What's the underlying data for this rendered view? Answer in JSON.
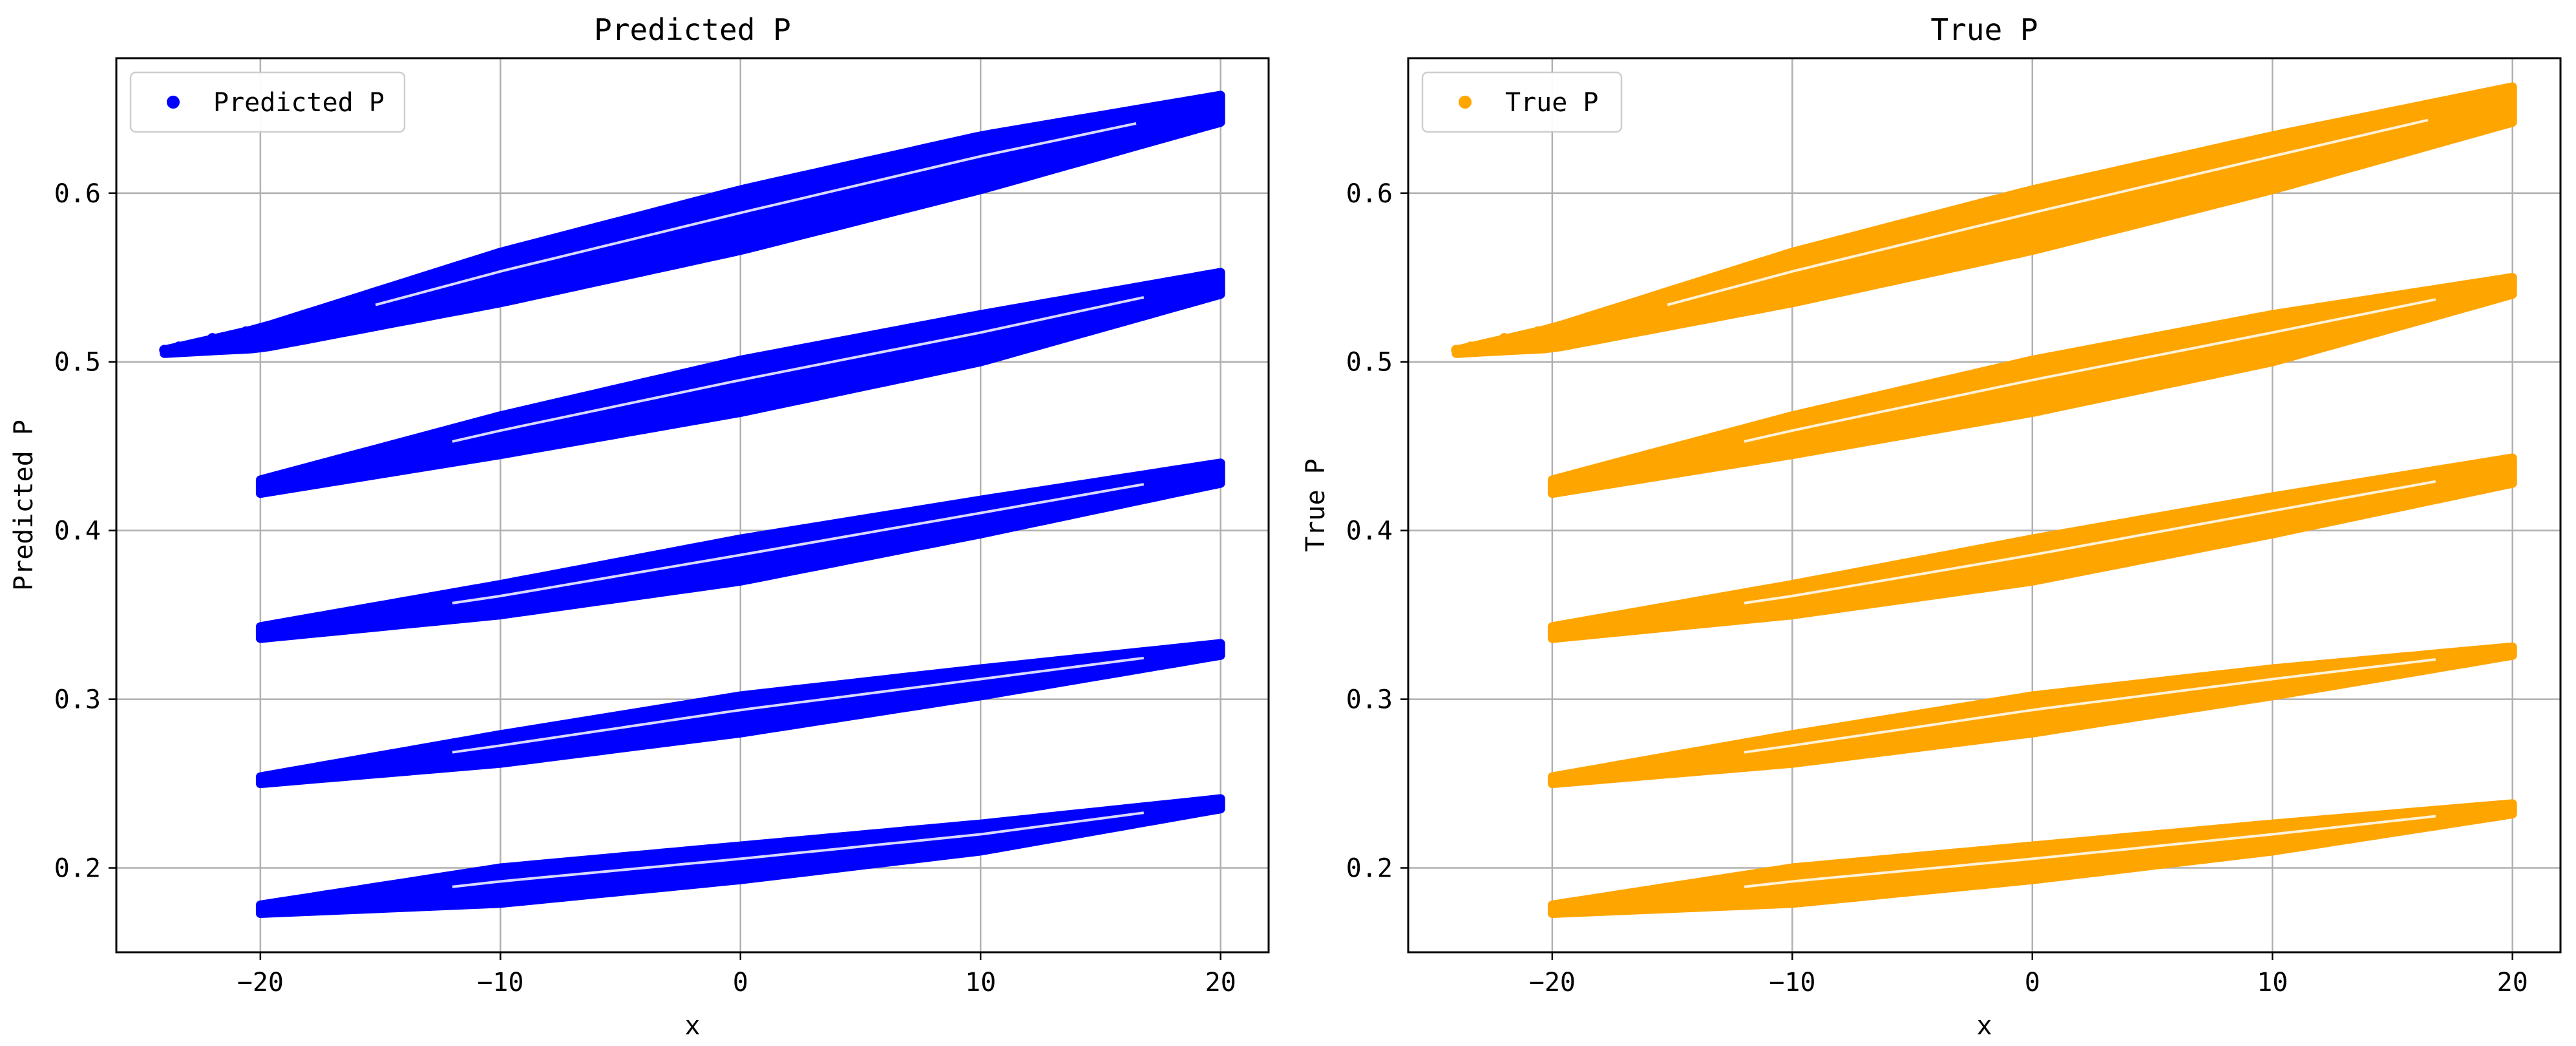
{
  "chart_data": [
    {
      "type": "scatter",
      "title": "Predicted P",
      "xlabel": "x",
      "ylabel": "Predicted P",
      "xlim": [
        -26,
        22
      ],
      "ylim": [
        0.15,
        0.68
      ],
      "xticks": [
        -20,
        -10,
        0,
        10,
        20
      ],
      "yticks": [
        0.2,
        0.3,
        0.4,
        0.5,
        0.6
      ],
      "xtick_labels": [
        "−20",
        "−10",
        "0",
        "10",
        "20"
      ],
      "ytick_labels": [
        "0.2",
        "0.3",
        "0.4",
        "0.5",
        "0.6"
      ],
      "grid": true,
      "legend": {
        "position": "top-left",
        "entries": [
          "Predicted P"
        ]
      },
      "series": [
        {
          "name": "Predicted P",
          "color": "#0000ff",
          "bands": [
            {
              "x_min": -24,
              "x_max": 20,
              "upper": [
                [
                  -24,
                  0.507
                ],
                [
                  -20,
                  0.52
                ],
                [
                  -10,
                  0.565
                ],
                [
                  0,
                  0.602
                ],
                [
                  10,
                  0.634
                ],
                [
                  20,
                  0.658
                ]
              ],
              "lower": [
                [
                  -24,
                  0.505
                ],
                [
                  -20,
                  0.508
                ],
                [
                  -10,
                  0.535
                ],
                [
                  0,
                  0.566
                ],
                [
                  10,
                  0.602
                ],
                [
                  20,
                  0.642
                ]
              ]
            },
            {
              "x_min": -20,
              "x_max": 20,
              "upper": [
                [
                  -20,
                  0.43
                ],
                [
                  -10,
                  0.468
                ],
                [
                  0,
                  0.501
                ],
                [
                  10,
                  0.528
                ],
                [
                  20,
                  0.553
                ]
              ],
              "lower": [
                [
                  -20,
                  0.422
                ],
                [
                  -10,
                  0.445
                ],
                [
                  0,
                  0.47
                ],
                [
                  10,
                  0.5
                ],
                [
                  20,
                  0.54
                ]
              ]
            },
            {
              "x_min": -20,
              "x_max": 20,
              "upper": [
                [
                  -20,
                  0.343
                ],
                [
                  -10,
                  0.368
                ],
                [
                  0,
                  0.395
                ],
                [
                  10,
                  0.418
                ],
                [
                  20,
                  0.44
                ]
              ],
              "lower": [
                [
                  -20,
                  0.336
                ],
                [
                  -10,
                  0.35
                ],
                [
                  0,
                  0.37
                ],
                [
                  10,
                  0.398
                ],
                [
                  20,
                  0.428
                ]
              ]
            },
            {
              "x_min": -20,
              "x_max": 20,
              "upper": [
                [
                  -20,
                  0.254
                ],
                [
                  -10,
                  0.279
                ],
                [
                  0,
                  0.302
                ],
                [
                  10,
                  0.318
                ],
                [
                  20,
                  0.333
                ]
              ],
              "lower": [
                [
                  -20,
                  0.25
                ],
                [
                  -10,
                  0.262
                ],
                [
                  0,
                  0.28
                ],
                [
                  10,
                  0.302
                ],
                [
                  20,
                  0.326
                ]
              ]
            },
            {
              "x_min": -20,
              "x_max": 20,
              "upper": [
                [
                  -20,
                  0.178
                ],
                [
                  -10,
                  0.2
                ],
                [
                  0,
                  0.213
                ],
                [
                  10,
                  0.226
                ],
                [
                  20,
                  0.241
                ]
              ],
              "lower": [
                [
                  -20,
                  0.173
                ],
                [
                  -10,
                  0.179
                ],
                [
                  0,
                  0.193
                ],
                [
                  10,
                  0.21
                ],
                [
                  20,
                  0.235
                ]
              ]
            }
          ]
        }
      ]
    },
    {
      "type": "scatter",
      "title": "True P",
      "xlabel": "x",
      "ylabel": "True P",
      "xlim": [
        -26,
        22
      ],
      "ylim": [
        0.15,
        0.68
      ],
      "xticks": [
        -20,
        -10,
        0,
        10,
        20
      ],
      "yticks": [
        0.2,
        0.3,
        0.4,
        0.5,
        0.6
      ],
      "xtick_labels": [
        "−20",
        "−10",
        "0",
        "10",
        "20"
      ],
      "ytick_labels": [
        "0.2",
        "0.3",
        "0.4",
        "0.5",
        "0.6"
      ],
      "grid": true,
      "legend": {
        "position": "top-left",
        "entries": [
          "True P"
        ]
      },
      "series": [
        {
          "name": "True P",
          "color": "#ffa500",
          "bands": [
            {
              "x_min": -24,
              "x_max": 20,
              "upper": [
                [
                  -24,
                  0.507
                ],
                [
                  -20,
                  0.52
                ],
                [
                  -10,
                  0.565
                ],
                [
                  0,
                  0.602
                ],
                [
                  10,
                  0.634
                ],
                [
                  20,
                  0.663
                ]
              ],
              "lower": [
                [
                  -24,
                  0.505
                ],
                [
                  -20,
                  0.508
                ],
                [
                  -10,
                  0.535
                ],
                [
                  0,
                  0.566
                ],
                [
                  10,
                  0.602
                ],
                [
                  20,
                  0.642
                ]
              ]
            },
            {
              "x_min": -20,
              "x_max": 20,
              "upper": [
                [
                  -20,
                  0.43
                ],
                [
                  -10,
                  0.468
                ],
                [
                  0,
                  0.501
                ],
                [
                  10,
                  0.528
                ],
                [
                  20,
                  0.55
                ]
              ],
              "lower": [
                [
                  -20,
                  0.422
                ],
                [
                  -10,
                  0.445
                ],
                [
                  0,
                  0.47
                ],
                [
                  10,
                  0.5
                ],
                [
                  20,
                  0.54
                ]
              ]
            },
            {
              "x_min": -20,
              "x_max": 20,
              "upper": [
                [
                  -20,
                  0.343
                ],
                [
                  -10,
                  0.368
                ],
                [
                  0,
                  0.395
                ],
                [
                  10,
                  0.42
                ],
                [
                  20,
                  0.443
                ]
              ],
              "lower": [
                [
                  -20,
                  0.336
                ],
                [
                  -10,
                  0.35
                ],
                [
                  0,
                  0.37
                ],
                [
                  10,
                  0.398
                ],
                [
                  20,
                  0.428
                ]
              ]
            },
            {
              "x_min": -20,
              "x_max": 20,
              "upper": [
                [
                  -20,
                  0.254
                ],
                [
                  -10,
                  0.279
                ],
                [
                  0,
                  0.302
                ],
                [
                  10,
                  0.318
                ],
                [
                  20,
                  0.331
                ]
              ],
              "lower": [
                [
                  -20,
                  0.25
                ],
                [
                  -10,
                  0.262
                ],
                [
                  0,
                  0.28
                ],
                [
                  10,
                  0.302
                ],
                [
                  20,
                  0.326
                ]
              ]
            },
            {
              "x_min": -20,
              "x_max": 20,
              "upper": [
                [
                  -20,
                  0.178
                ],
                [
                  -10,
                  0.2
                ],
                [
                  0,
                  0.213
                ],
                [
                  10,
                  0.226
                ],
                [
                  20,
                  0.238
                ]
              ],
              "lower": [
                [
                  -20,
                  0.173
                ],
                [
                  -10,
                  0.179
                ],
                [
                  0,
                  0.193
                ],
                [
                  10,
                  0.21
                ],
                [
                  20,
                  0.232
                ]
              ]
            }
          ]
        }
      ]
    }
  ]
}
